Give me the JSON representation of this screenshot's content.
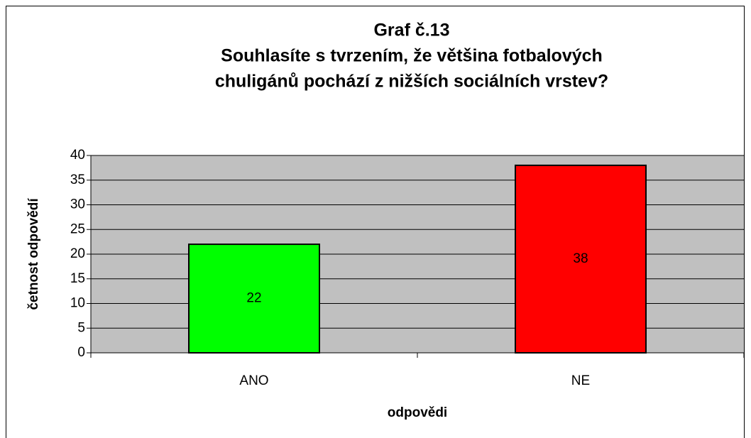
{
  "chart_data": {
    "type": "bar",
    "title": "Graf č.13",
    "subtitle": [
      "Souhlasíte s tvrzením, že většina fotbalových",
      "chuligánů pochází z nižších sociálních vrstev?"
    ],
    "x_label": "odpovědi",
    "y_label": "četnost odpovědí",
    "categories": [
      "ANO",
      "NE"
    ],
    "values": [
      22,
      38
    ],
    "colors": [
      "#00ff00",
      "#ff0000"
    ],
    "ylim": [
      0,
      40
    ],
    "yticks": [
      0,
      5,
      10,
      15,
      20,
      25,
      30,
      35,
      40
    ],
    "grid": true,
    "plot_background": "#c0c0c0"
  }
}
